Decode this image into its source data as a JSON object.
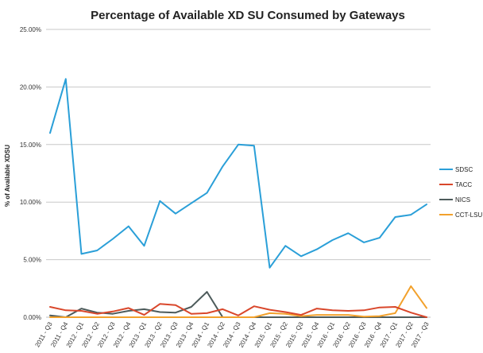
{
  "chart_data": {
    "type": "line",
    "title": "Percentage of Available XD SU Consumed by Gateways",
    "xlabel": "",
    "ylabel": "% of Available XDSU",
    "ylim": [
      0,
      25
    ],
    "yticks": [
      "0.00%",
      "5.00%",
      "10.00%",
      "15.00%",
      "20.00%",
      "25.00%"
    ],
    "ytick_values": [
      0,
      5,
      10,
      15,
      20,
      25
    ],
    "grid": true,
    "legend_position": "right",
    "categories": [
      "2011 - Q3",
      "2011 - Q4",
      "2012 - Q1",
      "2012 - Q2",
      "2012 - Q3",
      "2012 - Q4",
      "2013 - Q1",
      "2013 - Q2",
      "2013 - Q3",
      "2013 - Q4",
      "2014 - Q1",
      "2014 - Q2",
      "2014 - Q3",
      "2014 - Q4",
      "2015 - Q1",
      "2015 - Q2",
      "2015 - Q3",
      "2015 - Q4",
      "2016 - Q1",
      "2016 - Q2",
      "2016 - Q3",
      "2016 - Q4",
      "2017 - Q1",
      "2017 - Q2",
      "2017 - Q3"
    ],
    "series": [
      {
        "name": "SDSC",
        "color": "#2a9fd8",
        "values": [
          16.0,
          20.7,
          5.5,
          5.8,
          6.8,
          7.9,
          6.2,
          10.1,
          9.0,
          9.9,
          10.8,
          13.1,
          15.0,
          14.9,
          4.3,
          6.2,
          5.3,
          5.9,
          6.7,
          7.3,
          6.5,
          6.9,
          8.7,
          8.9,
          9.8
        ]
      },
      {
        "name": "TACC",
        "color": "#d9472b",
        "values": [
          0.9,
          0.6,
          0.55,
          0.3,
          0.5,
          0.8,
          0.2,
          1.15,
          1.05,
          0.3,
          0.35,
          0.7,
          0.15,
          0.95,
          0.65,
          0.45,
          0.2,
          0.75,
          0.6,
          0.55,
          0.6,
          0.85,
          0.9,
          0.4,
          0.0
        ]
      },
      {
        "name": "NICS",
        "color": "#4d5b5b",
        "values": [
          0.15,
          0.0,
          0.75,
          0.4,
          0.3,
          0.55,
          0.7,
          0.45,
          0.4,
          0.9,
          2.2,
          0.0,
          0.0,
          0.0,
          0.0,
          0.0,
          0.0,
          0.0,
          0.0,
          0.0,
          0.0,
          0.0,
          0.0,
          0.0,
          0.0
        ]
      },
      {
        "name": "CCT-LSU",
        "color": "#f2a12c",
        "values": [
          0.0,
          0.0,
          0.0,
          0.0,
          0.0,
          0.0,
          0.0,
          0.0,
          0.0,
          0.0,
          0.0,
          0.0,
          0.0,
          0.0,
          0.35,
          0.3,
          0.1,
          0.2,
          0.2,
          0.2,
          0.05,
          0.1,
          0.35,
          2.7,
          0.8
        ]
      }
    ]
  }
}
